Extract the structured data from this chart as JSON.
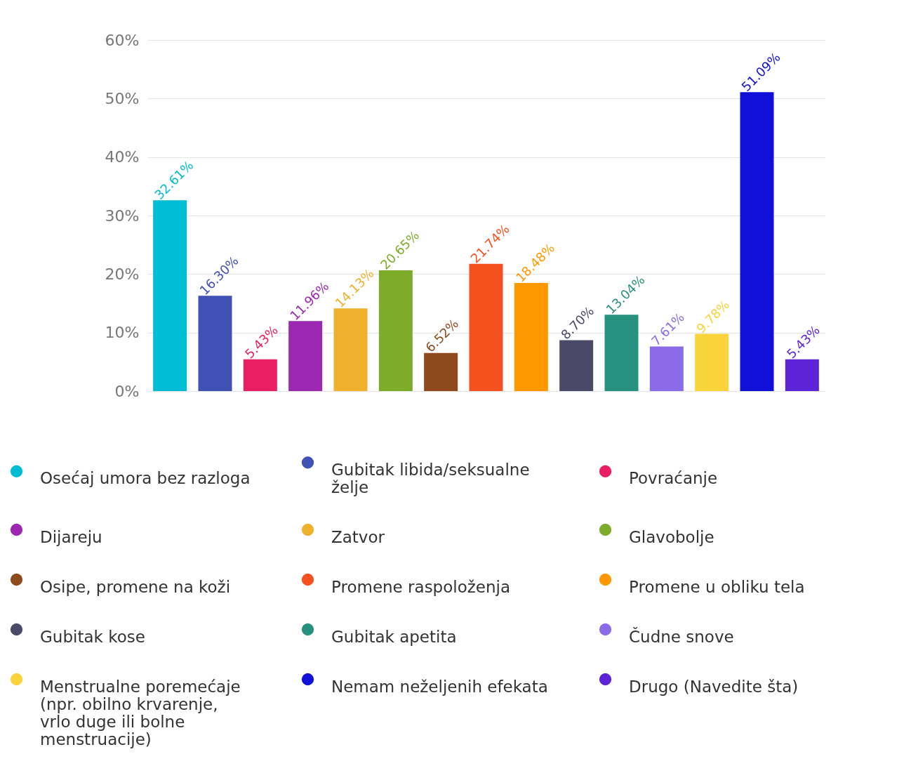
{
  "chart_data": {
    "type": "bar",
    "categories": [
      null,
      null,
      null,
      null,
      null,
      null,
      null,
      null,
      null,
      null,
      null,
      null,
      null,
      null,
      null
    ],
    "series": [
      {
        "name": "Osećaj umora bez razloga",
        "color": "#00bcd4",
        "values": [
          32.61,
          null,
          null,
          null,
          null,
          null,
          null,
          null,
          null,
          null,
          null,
          null,
          null,
          null,
          null
        ],
        "value_labels": [
          "32.61%",
          null,
          null,
          null,
          null,
          null,
          null,
          null,
          null,
          null,
          null,
          null,
          null,
          null,
          null
        ]
      },
      {
        "name": "Gubitak libida/seksualne želje",
        "color": "#3f51b5",
        "values": [
          null,
          16.3,
          null,
          null,
          null,
          null,
          null,
          null,
          null,
          null,
          null,
          null,
          null,
          null,
          null
        ],
        "value_labels": [
          null,
          "16.30%",
          null,
          null,
          null,
          null,
          null,
          null,
          null,
          null,
          null,
          null,
          null,
          null,
          null
        ]
      },
      {
        "name": "Povraćanje",
        "color": "#e91e63",
        "values": [
          null,
          null,
          5.43,
          null,
          null,
          null,
          null,
          null,
          null,
          null,
          null,
          null,
          null,
          null,
          null
        ],
        "value_labels": [
          null,
          null,
          "5.43%",
          null,
          null,
          null,
          null,
          null,
          null,
          null,
          null,
          null,
          null,
          null,
          null
        ]
      },
      {
        "name": "Dijareju",
        "color": "#9c27b0",
        "values": [
          null,
          null,
          null,
          11.96,
          null,
          null,
          null,
          null,
          null,
          null,
          null,
          null,
          null,
          null,
          null
        ],
        "value_labels": [
          null,
          null,
          null,
          "11.96%",
          null,
          null,
          null,
          null,
          null,
          null,
          null,
          null,
          null,
          null,
          null
        ]
      },
      {
        "name": "Zatvor",
        "color": "#f0b02c",
        "values": [
          null,
          null,
          null,
          null,
          14.13,
          null,
          null,
          null,
          null,
          null,
          null,
          null,
          null,
          null,
          null
        ],
        "value_labels": [
          null,
          null,
          null,
          null,
          "14.13%",
          null,
          null,
          null,
          null,
          null,
          null,
          null,
          null,
          null,
          null
        ]
      },
      {
        "name": "Glavobolje",
        "color": "#7cac2a",
        "values": [
          null,
          null,
          null,
          null,
          null,
          20.65,
          null,
          null,
          null,
          null,
          null,
          null,
          null,
          null,
          null
        ],
        "value_labels": [
          null,
          null,
          null,
          null,
          null,
          "20.65%",
          null,
          null,
          null,
          null,
          null,
          null,
          null,
          null,
          null
        ]
      },
      {
        "name": "Osipe, promene na koži",
        "color": "#8e4a1c",
        "values": [
          null,
          null,
          null,
          null,
          null,
          null,
          6.52,
          null,
          null,
          null,
          null,
          null,
          null,
          null,
          null
        ],
        "value_labels": [
          null,
          null,
          null,
          null,
          null,
          null,
          "6.52%",
          null,
          null,
          null,
          null,
          null,
          null,
          null,
          null
        ]
      },
      {
        "name": "Promene raspoloženja",
        "color": "#f4511e",
        "values": [
          null,
          null,
          null,
          null,
          null,
          null,
          null,
          21.74,
          null,
          null,
          null,
          null,
          null,
          null,
          null
        ],
        "value_labels": [
          null,
          null,
          null,
          null,
          null,
          null,
          null,
          "21.74%",
          null,
          null,
          null,
          null,
          null,
          null,
          null
        ]
      },
      {
        "name": "Promene u obliku tela",
        "color": "#ff9800",
        "values": [
          null,
          null,
          null,
          null,
          null,
          null,
          null,
          null,
          18.48,
          null,
          null,
          null,
          null,
          null,
          null
        ],
        "value_labels": [
          null,
          null,
          null,
          null,
          null,
          null,
          null,
          null,
          "18.48%",
          null,
          null,
          null,
          null,
          null,
          null
        ]
      },
      {
        "name": "Gubitak kose",
        "color": "#4a4a68",
        "values": [
          null,
          null,
          null,
          null,
          null,
          null,
          null,
          null,
          null,
          8.7,
          null,
          null,
          null,
          null,
          null
        ],
        "value_labels": [
          null,
          null,
          null,
          null,
          null,
          null,
          null,
          null,
          null,
          "8.70%",
          null,
          null,
          null,
          null,
          null
        ]
      },
      {
        "name": "Gubitak apetita",
        "color": "#26917f",
        "values": [
          null,
          null,
          null,
          null,
          null,
          null,
          null,
          null,
          null,
          null,
          13.04,
          null,
          null,
          null,
          null
        ],
        "value_labels": [
          null,
          null,
          null,
          null,
          null,
          null,
          null,
          null,
          null,
          null,
          "13.04%",
          null,
          null,
          null,
          null
        ]
      },
      {
        "name": "Čudne snove",
        "color": "#8c6be8",
        "values": [
          null,
          null,
          null,
          null,
          null,
          null,
          null,
          null,
          null,
          null,
          null,
          7.61,
          null,
          null,
          null
        ],
        "value_labels": [
          null,
          null,
          null,
          null,
          null,
          null,
          null,
          null,
          null,
          null,
          null,
          "7.61%",
          null,
          null,
          null
        ]
      },
      {
        "name": "Menstrualne poremećaje (npr. obilno krvarenje, vrlo duge ili bolne menstruacije)",
        "color": "#f9d33a",
        "values": [
          null,
          null,
          null,
          null,
          null,
          null,
          null,
          null,
          null,
          null,
          null,
          null,
          9.78,
          null,
          null
        ],
        "value_labels": [
          null,
          null,
          null,
          null,
          null,
          null,
          null,
          null,
          null,
          null,
          null,
          null,
          "9.78%",
          null,
          null
        ]
      },
      {
        "name": "Nemam neželjenih efekata",
        "color": "#1010d8",
        "values": [
          null,
          null,
          null,
          null,
          null,
          null,
          null,
          null,
          null,
          null,
          null,
          null,
          null,
          51.09,
          null
        ],
        "value_labels": [
          null,
          null,
          null,
          null,
          null,
          null,
          null,
          null,
          null,
          null,
          null,
          null,
          null,
          "51.09%",
          null
        ]
      },
      {
        "name": "Drugo (Navedite šta)",
        "color": "#5c24d6",
        "values": [
          null,
          null,
          null,
          null,
          null,
          null,
          null,
          null,
          null,
          null,
          null,
          null,
          null,
          null,
          5.43
        ],
        "value_labels": [
          null,
          null,
          null,
          null,
          null,
          null,
          null,
          null,
          null,
          null,
          null,
          null,
          null,
          null,
          "5.43%"
        ]
      }
    ],
    "ylim": [
      0,
      60
    ],
    "yticks": [
      {
        "value": 0,
        "label": "0%"
      },
      {
        "value": 10,
        "label": "10%"
      },
      {
        "value": 20,
        "label": "20%"
      },
      {
        "value": 30,
        "label": "30%"
      },
      {
        "value": 40,
        "label": "40%"
      },
      {
        "value": 50,
        "label": "50%"
      },
      {
        "value": 60,
        "label": "60%"
      }
    ],
    "grid": "y",
    "legend": "bottom"
  }
}
